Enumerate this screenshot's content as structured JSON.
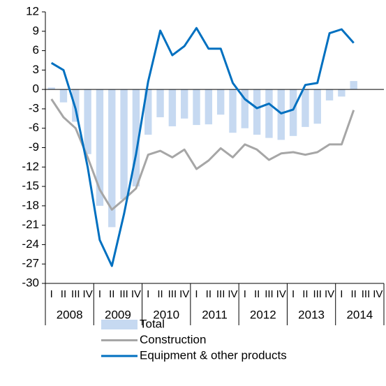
{
  "chart_data": {
    "type": "bar_line",
    "categories": [
      "I",
      "II",
      "III",
      "IV",
      "I",
      "II",
      "III",
      "IV",
      "I",
      "II",
      "III",
      "IV",
      "I",
      "II",
      "III",
      "IV",
      "I",
      "II",
      "III",
      "IV",
      "I",
      "II",
      "III",
      "IV",
      "I",
      "II",
      "III",
      "IV"
    ],
    "years": [
      "2008",
      "2009",
      "2010",
      "2011",
      "2012",
      "2013",
      "2014"
    ],
    "series": [
      {
        "name": "Total",
        "type": "bar",
        "color": "#c6d9f1",
        "values": [
          0.3,
          -2,
          -5,
          -10,
          -18,
          -21.3,
          -17,
          -15,
          -7,
          -4.3,
          -5.7,
          -4.5,
          -5.5,
          -5.4,
          -3.9,
          -6.7,
          -6,
          -7,
          -7.5,
          -7.8,
          -7.2,
          -5.8,
          -5.3,
          -1.7,
          -1.1,
          1.3,
          null,
          null
        ]
      },
      {
        "name": "Construction",
        "type": "line",
        "color": "#a6a6a6",
        "values": [
          -1.5,
          -4.3,
          -6,
          -10.5,
          -15.5,
          -18.6,
          -17,
          -15.3,
          -10.1,
          -9.5,
          -10.5,
          -9.3,
          -12.3,
          -11,
          -9.1,
          -10.5,
          -8.5,
          -9.3,
          -10.9,
          -9.9,
          -9.7,
          -10.1,
          -9.7,
          -8.5,
          -8.5,
          -3.2,
          null,
          null
        ]
      },
      {
        "name": "Equipment & other products",
        "type": "line",
        "color": "#0070c0",
        "values": [
          4.1,
          3,
          -3,
          -12,
          -23.3,
          -27.3,
          -19.3,
          -10,
          1.2,
          9.1,
          5.3,
          6.7,
          9.5,
          6.3,
          6.3,
          1,
          -1.5,
          -2.9,
          -2.2,
          -3.7,
          -3.1,
          0.7,
          1,
          8.7,
          9.3,
          7.2,
          null,
          null
        ]
      }
    ],
    "ylim": [
      -30,
      12
    ],
    "yticks": [
      -30,
      -27,
      -24,
      -21,
      -18,
      -15,
      -12,
      -9,
      -6,
      -3,
      0,
      3,
      6,
      9,
      12
    ],
    "grid": false
  }
}
